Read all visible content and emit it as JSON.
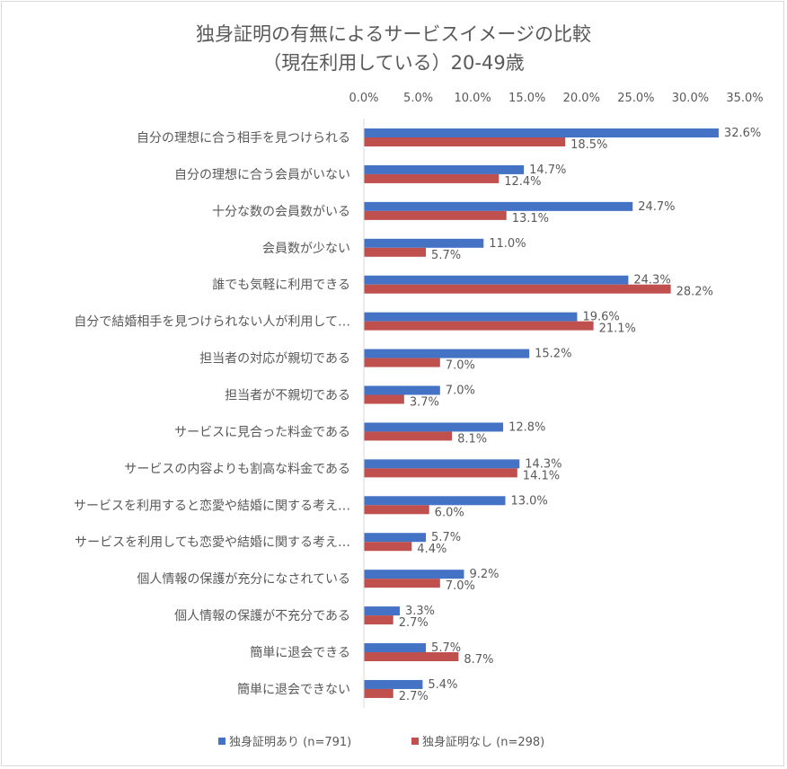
{
  "chart_data": {
    "type": "bar",
    "orientation": "horizontal",
    "title": [
      "独身証明の有無によるサービスイメージの比較",
      "（現在利用している）20-49歳"
    ],
    "categories": [
      "自分の理想に合う相手を見つけられる",
      "自分の理想に合う会員がいない",
      "十分な数の会員数がいる",
      "会員数が少ない",
      "誰でも気軽に利用できる",
      "自分で結婚相手を見つけられない人が利用して…",
      "担当者の対応が親切である",
      "担当者が不親切である",
      "サービスに見合った料金である",
      "サービスの内容よりも割高な料金である",
      "サービスを利用すると恋愛や結婚に関する考え…",
      "サービスを利用しても恋愛や結婚に関する考え…",
      "個人情報の保護が充分になされている",
      "個人情報の保護が不充分である",
      "簡単に退会できる",
      "簡単に退会できない"
    ],
    "series": [
      {
        "name": "独身証明あり (n=791)",
        "color": "#4472c4",
        "values": [
          32.6,
          14.7,
          24.7,
          11.0,
          24.3,
          19.6,
          15.2,
          7.0,
          12.8,
          14.3,
          13.0,
          5.7,
          9.2,
          3.3,
          5.7,
          5.4
        ],
        "labels": [
          "32.6%",
          "14.7%",
          "24.7%",
          "11.0%",
          "24.3%",
          "19.6%",
          "15.2%",
          "7.0%",
          "12.8%",
          "14.3%",
          "13.0%",
          "5.7%",
          "9.2%",
          "3.3%",
          "5.7%",
          "5.4%"
        ]
      },
      {
        "name": "独身証明なし (n=298)",
        "color": "#c0504d",
        "values": [
          18.5,
          12.4,
          13.1,
          5.7,
          28.2,
          21.1,
          7.0,
          3.7,
          8.1,
          14.1,
          6.0,
          4.4,
          7.0,
          2.7,
          8.7,
          2.7
        ],
        "labels": [
          "18.5%",
          "12.4%",
          "13.1%",
          "5.7%",
          "28.2%",
          "21.1%",
          "7.0%",
          "3.7%",
          "8.1%",
          "14.1%",
          "6.0%",
          "4.4%",
          "7.0%",
          "2.7%",
          "8.7%",
          "2.7%"
        ]
      }
    ],
    "xlim": [
      0,
      35
    ],
    "x_ticks": [
      "0.0%",
      "5.0%",
      "10.0%",
      "15.0%",
      "20.0%",
      "25.0%",
      "30.0%",
      "35.0%"
    ],
    "x_axis_position": "top",
    "grid": false,
    "legend": "bottom"
  }
}
